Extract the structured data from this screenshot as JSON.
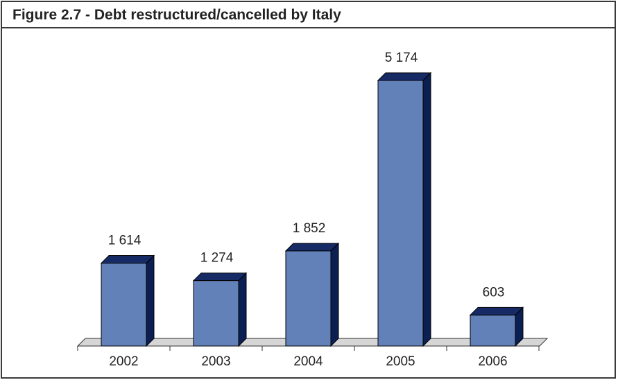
{
  "figure": {
    "title": "Figure 2.7 - Debt restructured/cancelled by Italy"
  },
  "chart_data": {
    "type": "bar",
    "style": "3d-column",
    "categories": [
      "2002",
      "2003",
      "2004",
      "2005",
      "2006"
    ],
    "values": [
      1614,
      1274,
      1852,
      5174,
      603
    ],
    "value_labels": [
      "1 614",
      "1 274",
      "1 852",
      "5 174",
      "603"
    ],
    "title": "Figure 2.7 - Debt restructured/cancelled by Italy",
    "ylim": [
      0,
      5500
    ],
    "grid": false,
    "legend": "none",
    "colors": {
      "bar_front": "#6381b9",
      "bar_top": "#162a66",
      "bar_side": "#0c1f52",
      "floor": "#d6d6d6",
      "text": "#222222"
    }
  }
}
